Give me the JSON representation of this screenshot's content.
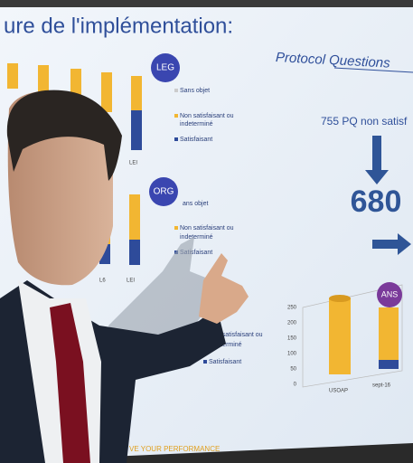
{
  "slide": {
    "title": "ure de l'implémentation:",
    "title_italic": "Protocol Questions",
    "leg": {
      "badge": "LEG",
      "legend": [
        "Sans objet",
        "Non satisfaisant ou",
        "indeterminé",
        "Satisfaisant"
      ],
      "x_label": "LEI"
    },
    "org": {
      "badge": "ORG",
      "legend": [
        "ans objet",
        "Non satisfaisant ou",
        "indeterminé",
        "Satisfaisant"
      ],
      "x_labels": [
        "L6",
        "LEI"
      ]
    },
    "third": {
      "legend": [
        "Non satisfaisant ou",
        "indeterminé",
        "Satisfaisant"
      ]
    },
    "pq_text": "755 PQ non satisf",
    "count": "680",
    "ans": {
      "badge": "ANS",
      "y_labels": [
        "250",
        "200",
        "150",
        "100",
        "50",
        "0"
      ],
      "x_labels": [
        "USOAP",
        "sept-16"
      ]
    },
    "footer": "VE YOUR PERFORMANCE"
  }
}
